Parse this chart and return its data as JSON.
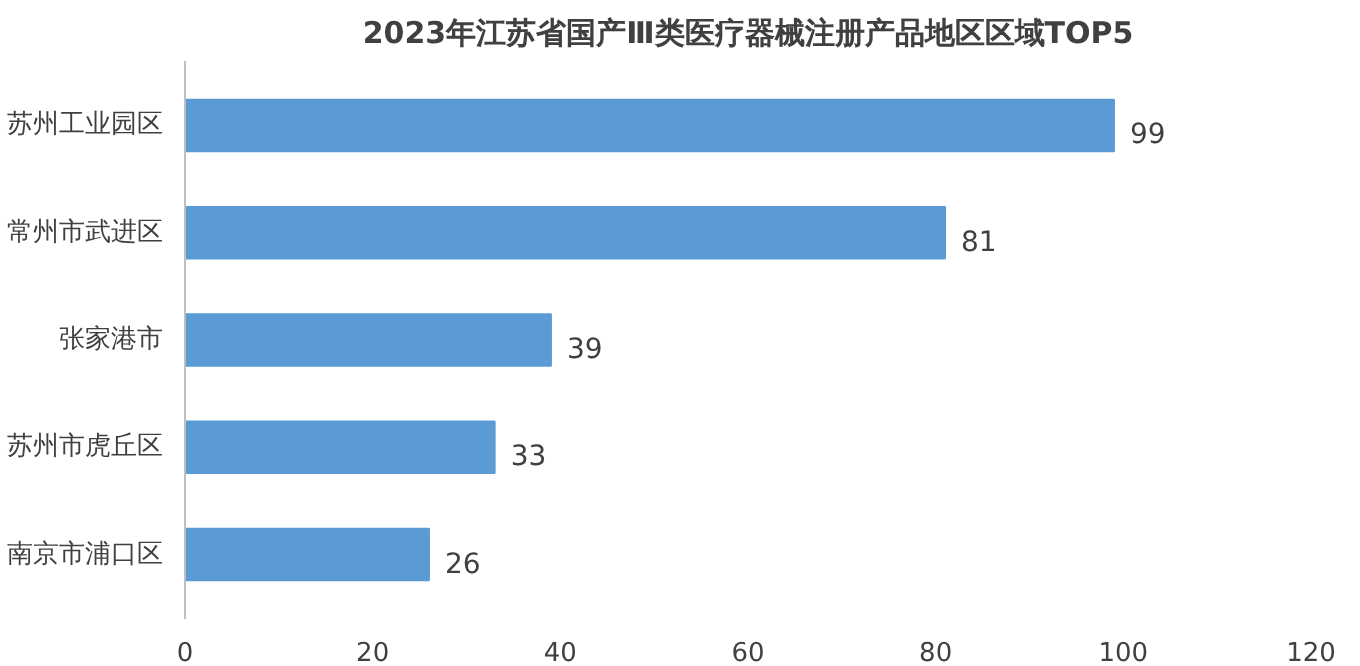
{
  "chart_data": {
    "type": "bar",
    "orientation": "horizontal",
    "title": "2023年江苏省国产Ⅲ类医疗器械注册产品地区区域TOP5",
    "categories": [
      "苏州工业园区",
      "常州市武进区",
      "张家港市",
      "苏州市虎丘区",
      "南京市浦口区"
    ],
    "values": [
      99,
      81,
      39,
      33,
      26
    ],
    "color": "#5b9bd5",
    "xlim": [
      0,
      120
    ],
    "xticks": [
      0,
      20,
      40,
      60,
      80,
      100,
      120
    ],
    "data_labels": true,
    "grid": false
  }
}
